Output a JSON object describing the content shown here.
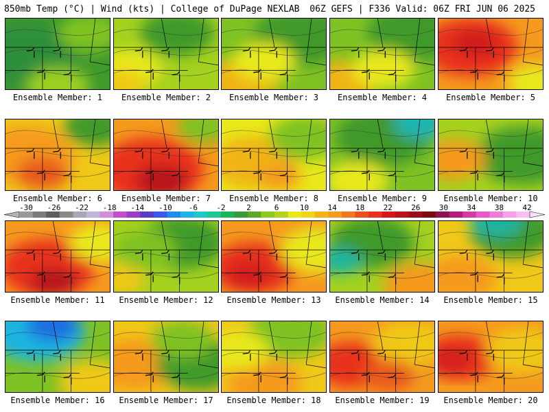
{
  "header": {
    "left": "850mb Temp (°C) | Wind (kts) | College of DuPage NEXLAB",
    "right": "06Z GEFS | F336 Valid: 06Z FRI JUN 06 2025"
  },
  "panels": [
    {
      "label": "Ensemble Member: 1",
      "base": "#3f9a2c",
      "blobs": [
        [
          "#2f8f3a",
          0.2,
          0.5,
          0.5
        ],
        [
          "#7fc223",
          0.8,
          0.2,
          0.3
        ],
        [
          "#9bd020",
          0.5,
          0.95,
          0.3
        ]
      ]
    },
    {
      "label": "Ensemble Member: 2",
      "base": "#a5d11f",
      "blobs": [
        [
          "#3f9a2c",
          0.6,
          0.2,
          0.35
        ],
        [
          "#e8e81a",
          0.15,
          0.7,
          0.3
        ],
        [
          "#f0c818",
          0.05,
          0.95,
          0.25
        ]
      ]
    },
    {
      "label": "Ensemble Member: 3",
      "base": "#7fc223",
      "blobs": [
        [
          "#3f9a2c",
          0.75,
          0.25,
          0.45
        ],
        [
          "#f0b418",
          0.2,
          0.85,
          0.35
        ],
        [
          "#e8e81a",
          0.4,
          0.6,
          0.3
        ]
      ]
    },
    {
      "label": "Ensemble Member: 4",
      "base": "#7fc223",
      "blobs": [
        [
          "#3f9a2c",
          0.8,
          0.2,
          0.45
        ],
        [
          "#f0b418",
          0.1,
          0.9,
          0.35
        ],
        [
          "#e8e81a",
          0.5,
          0.7,
          0.3
        ]
      ]
    },
    {
      "label": "Ensemble Member: 5",
      "base": "#f59a1e",
      "blobs": [
        [
          "#e8321e",
          0.3,
          0.4,
          0.45
        ],
        [
          "#d21a1a",
          0.35,
          0.35,
          0.22
        ],
        [
          "#e8e81a",
          0.95,
          0.9,
          0.3
        ]
      ]
    },
    {
      "label": "Ensemble Member: 6",
      "base": "#f0c818",
      "blobs": [
        [
          "#f59a1e",
          0.2,
          0.5,
          0.45
        ],
        [
          "#e85a1e",
          0.35,
          0.75,
          0.25
        ],
        [
          "#3f9a2c",
          0.85,
          0.1,
          0.3
        ]
      ]
    },
    {
      "label": "Ensemble Member: 7",
      "base": "#f59a1e",
      "blobs": [
        [
          "#e8321e",
          0.35,
          0.7,
          0.5
        ],
        [
          "#b8141a",
          0.45,
          0.85,
          0.25
        ],
        [
          "#7fc223",
          0.85,
          0.1,
          0.25
        ]
      ]
    },
    {
      "label": "Ensemble Member: 8",
      "base": "#e8e81a",
      "blobs": [
        [
          "#f0b418",
          0.3,
          0.6,
          0.4
        ],
        [
          "#7fc223",
          0.8,
          0.25,
          0.35
        ],
        [
          "#f59a1e",
          0.55,
          0.8,
          0.2
        ]
      ]
    },
    {
      "label": "Ensemble Member: 9",
      "base": "#7fc223",
      "blobs": [
        [
          "#3f9a2c",
          0.5,
          0.25,
          0.45
        ],
        [
          "#1fb4b4",
          0.85,
          0.05,
          0.25
        ],
        [
          "#e8e81a",
          0.25,
          0.85,
          0.3
        ]
      ]
    },
    {
      "label": "Ensemble Member: 10",
      "base": "#a5d11f",
      "blobs": [
        [
          "#e8321e",
          0.12,
          0.65,
          0.2
        ],
        [
          "#3f9a2c",
          0.8,
          0.5,
          0.45
        ],
        [
          "#f59a1e",
          0.15,
          0.55,
          0.3
        ]
      ]
    },
    {
      "label": "Ensemble Member: 11",
      "base": "#f59a1e",
      "blobs": [
        [
          "#e8321e",
          0.4,
          0.65,
          0.45
        ],
        [
          "#b8141a",
          0.45,
          0.85,
          0.22
        ],
        [
          "#e8e81a",
          0.9,
          0.3,
          0.3
        ]
      ]
    },
    {
      "label": "Ensemble Member: 12",
      "base": "#a5d11f",
      "blobs": [
        [
          "#3f9a2c",
          0.65,
          0.3,
          0.4
        ],
        [
          "#f0c818",
          0.05,
          0.8,
          0.25
        ],
        [
          "#7fc223",
          0.3,
          0.4,
          0.3
        ]
      ]
    },
    {
      "label": "Ensemble Member: 13",
      "base": "#f59a1e",
      "blobs": [
        [
          "#e8321e",
          0.3,
          0.65,
          0.4
        ],
        [
          "#e8e81a",
          0.9,
          0.4,
          0.35
        ],
        [
          "#d21a1a",
          0.25,
          0.75,
          0.2
        ]
      ]
    },
    {
      "label": "Ensemble Member: 14",
      "base": "#a5d11f",
      "blobs": [
        [
          "#3f9a2c",
          0.4,
          0.3,
          0.4
        ],
        [
          "#1fb4a0",
          0.1,
          0.55,
          0.2
        ],
        [
          "#f59a1e",
          0.85,
          0.9,
          0.35
        ]
      ]
    },
    {
      "label": "Ensemble Member: 15",
      "base": "#f0c818",
      "blobs": [
        [
          "#3f9a2c",
          0.7,
          0.15,
          0.4
        ],
        [
          "#1fb4a0",
          0.55,
          0.0,
          0.25
        ],
        [
          "#f59a1e",
          0.2,
          0.8,
          0.35
        ]
      ]
    },
    {
      "label": "Ensemble Member: 16",
      "base": "#7fc223",
      "blobs": [
        [
          "#1fb4e0",
          0.3,
          0.15,
          0.45
        ],
        [
          "#1f6ee0",
          0.45,
          0.05,
          0.25
        ],
        [
          "#f0c818",
          0.85,
          0.85,
          0.35
        ]
      ]
    },
    {
      "label": "Ensemble Member: 17",
      "base": "#f0c818",
      "blobs": [
        [
          "#f59a1e",
          0.2,
          0.6,
          0.4
        ],
        [
          "#3f9a2c",
          0.8,
          0.6,
          0.4
        ],
        [
          "#7fc223",
          0.65,
          0.25,
          0.3
        ]
      ]
    },
    {
      "label": "Ensemble Member: 18",
      "base": "#f0c818",
      "blobs": [
        [
          "#7fc223",
          0.65,
          0.15,
          0.4
        ],
        [
          "#f59a1e",
          0.4,
          0.85,
          0.35
        ],
        [
          "#e8e81a",
          0.15,
          0.4,
          0.3
        ]
      ]
    },
    {
      "label": "Ensemble Member: 19",
      "base": "#f59a1e",
      "blobs": [
        [
          "#e8321e",
          0.2,
          0.6,
          0.35
        ],
        [
          "#f0c818",
          0.75,
          0.3,
          0.35
        ],
        [
          "#e85a1e",
          0.55,
          0.75,
          0.25
        ]
      ]
    },
    {
      "label": "Ensemble Member: 20",
      "base": "#f59a1e",
      "blobs": [
        [
          "#e8321e",
          0.2,
          0.5,
          0.35
        ],
        [
          "#f0c818",
          0.8,
          0.4,
          0.35
        ],
        [
          "#d21a1a",
          0.12,
          0.55,
          0.18
        ]
      ]
    }
  ],
  "colorbar": {
    "labels": [
      "-30",
      "-26",
      "-22",
      "-18",
      "-14",
      "-10",
      "-6",
      "-2",
      "2",
      "6",
      "10",
      "14",
      "18",
      "22",
      "26",
      "30",
      "34",
      "38",
      "42"
    ],
    "colors": [
      "#9a9a9a",
      "#7c7c7c",
      "#5e5e5e",
      "#8a8a8a",
      "#a8a8b4",
      "#c0b4d8",
      "#d28cd8",
      "#c050c8",
      "#9a3cc8",
      "#5a3cc8",
      "#3c5ae8",
      "#1e8ce8",
      "#1eb4e8",
      "#1ec8c8",
      "#1ec896",
      "#1eb45a",
      "#3c9a3c",
      "#5aaa28",
      "#8cc81e",
      "#b4d21e",
      "#e8e81a",
      "#f0d218",
      "#f0b418",
      "#f59a1e",
      "#f0781e",
      "#e8501e",
      "#e8321e",
      "#d21a1a",
      "#b8141a",
      "#9a0f1a",
      "#7a0a14",
      "#8c1450",
      "#b41e78",
      "#d23ca0",
      "#e85ac8",
      "#f07ad8",
      "#f5a0e8",
      "#f5c0f0"
    ]
  }
}
